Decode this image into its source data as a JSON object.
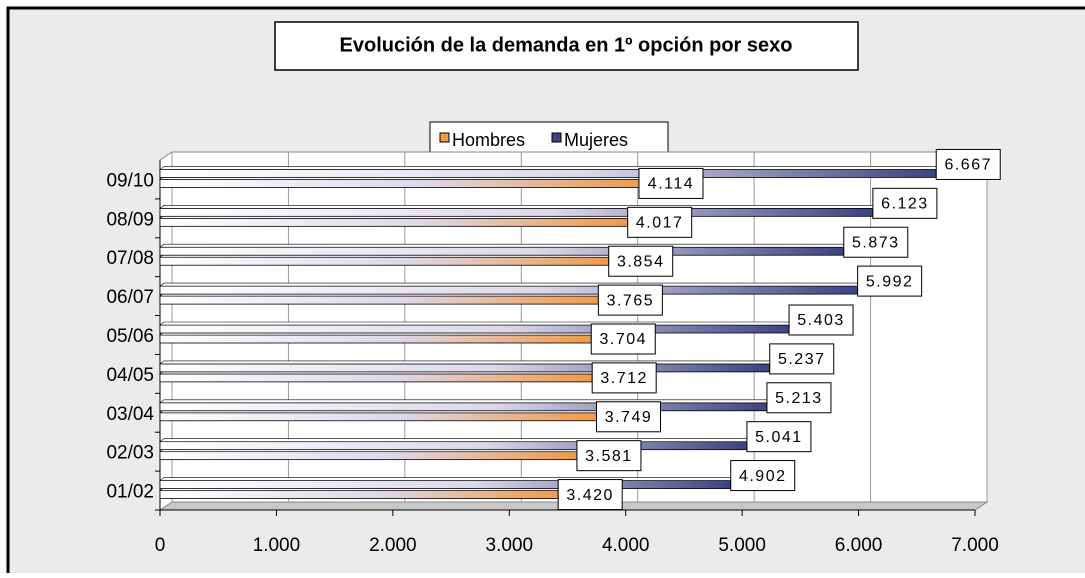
{
  "chart_data": {
    "type": "bar",
    "orientation": "horizontal",
    "title": "Evolución de la demanda en 1º opción por sexo",
    "categories": [
      "01/02",
      "02/03",
      "03/04",
      "04/05",
      "05/06",
      "06/07",
      "07/08",
      "08/09",
      "09/10"
    ],
    "series": [
      {
        "name": "Hombres",
        "color": "#f09a4a",
        "values": [
          3420,
          3581,
          3749,
          3712,
          3704,
          3765,
          3854,
          4017,
          4114
        ],
        "value_labels": [
          "3.420",
          "3.581",
          "3.749",
          "3.712",
          "3.704",
          "3.765",
          "3.854",
          "4.017",
          "4.114"
        ]
      },
      {
        "name": "Mujeres",
        "color": "#3c4382",
        "values": [
          4902,
          5041,
          5213,
          5237,
          5403,
          5992,
          5873,
          6123,
          6667
        ],
        "value_labels": [
          "4.902",
          "5.041",
          "5.213",
          "5.237",
          "5.403",
          "5.992",
          "5.873",
          "6.123",
          "6.667"
        ]
      }
    ],
    "xlim": [
      0,
      7000
    ],
    "xticks": [
      0,
      {
        "value": 1000,
        "label": "1.000"
      },
      {
        "value": 2000,
        "label": "2.000"
      },
      {
        "value": 3000,
        "label": "3.000"
      },
      {
        "value": 4000,
        "label": "4.000"
      },
      {
        "value": 5000,
        "label": "5.000"
      },
      {
        "value": 6000,
        "label": "6.000"
      },
      {
        "value": 7000,
        "label": "7.000"
      }
    ],
    "grid": true,
    "legend": "top"
  }
}
